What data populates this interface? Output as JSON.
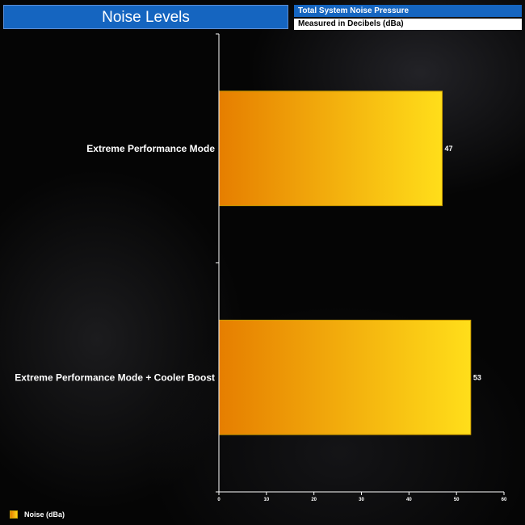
{
  "header": {
    "title": "Noise Levels",
    "subtitle": "Total System Noise Pressure",
    "subnote": "Measured in Decibels (dBa)"
  },
  "colors": {
    "header_blue": "#1565c0",
    "bar_gradient_start": "#e67e00",
    "bar_gradient_end": "#ffde1a"
  },
  "chart_data": {
    "type": "bar",
    "orientation": "horizontal",
    "categories": [
      "Extreme Performance Mode",
      "Extreme Performance Mode + Cooler Boost"
    ],
    "series": [
      {
        "name": "Noise (dBa)",
        "values": [
          47,
          53
        ]
      }
    ],
    "xlim": [
      0,
      60
    ],
    "xticks": [
      0,
      10,
      20,
      30,
      40,
      50,
      60
    ],
    "data_labels": true,
    "grid": false,
    "legend": "bottom-left"
  },
  "legend": {
    "label": "Noise (dBa)"
  }
}
